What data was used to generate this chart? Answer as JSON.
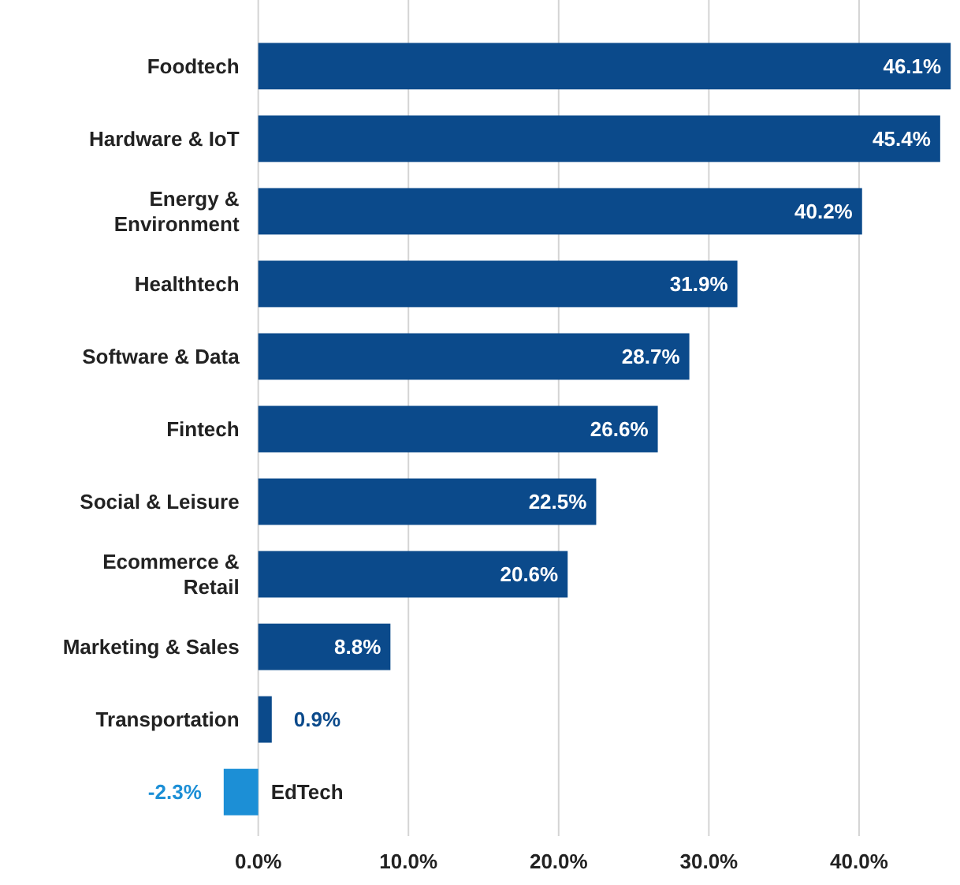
{
  "chart_data": {
    "type": "bar",
    "orientation": "horizontal",
    "categories": [
      "Foodtech",
      "Hardware & IoT",
      "Energy & Environment",
      "Healthtech",
      "Software & Data",
      "Fintech",
      "Social & Leisure",
      "Ecommerce & Retail",
      "Marketing & Sales",
      "Transportation",
      "EdTech"
    ],
    "values": [
      46.1,
      45.4,
      40.2,
      31.9,
      28.7,
      26.6,
      22.5,
      20.6,
      8.8,
      0.9,
      -2.3
    ],
    "colors": [
      "#0b4a8b",
      "#0b4a8b",
      "#0b4a8b",
      "#0b4a8b",
      "#0b4a8b",
      "#0b4a8b",
      "#0b4a8b",
      "#0b4a8b",
      "#0b4a8b",
      "#0b4a8b",
      "#1c8fd6"
    ],
    "value_labels": [
      "46.1%",
      "45.4%",
      "40.2%",
      "31.9%",
      "28.7%",
      "26.6%",
      "22.5%",
      "20.6%",
      "8.8%",
      "0.9%",
      "-2.3%"
    ],
    "xlim": [
      -2.5,
      46.3
    ],
    "xticks": [
      {
        "value": 0,
        "label": "0.0%"
      },
      {
        "value": 10,
        "label": "10.0%"
      },
      {
        "value": 20,
        "label": "20.0%"
      },
      {
        "value": 30,
        "label": "30.0%"
      },
      {
        "value": 40,
        "label": "40.0%"
      }
    ],
    "grid": "x"
  }
}
